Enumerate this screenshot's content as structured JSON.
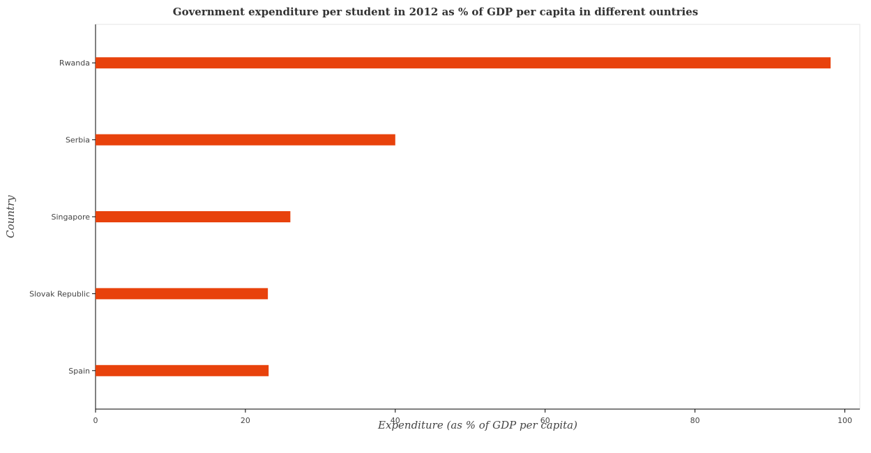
{
  "chart_data": {
    "type": "bar",
    "orientation": "horizontal",
    "title": "Government expenditure per student in 2012 as % of GDP per capita in different ountries",
    "xlabel": "Expenditure (as % of GDP per capita)",
    "ylabel": "Country",
    "categories": [
      "Rwanda",
      "Serbia",
      "Singapore",
      "Slovak Republic",
      "Spain"
    ],
    "values": [
      98.1,
      40.0,
      26.0,
      23.0,
      23.1
    ],
    "xlim": [
      0,
      102
    ],
    "xticks": [
      "0",
      "20",
      "40",
      "60",
      "80",
      "100"
    ],
    "bar_color": "#e8420c",
    "grid": false
  }
}
